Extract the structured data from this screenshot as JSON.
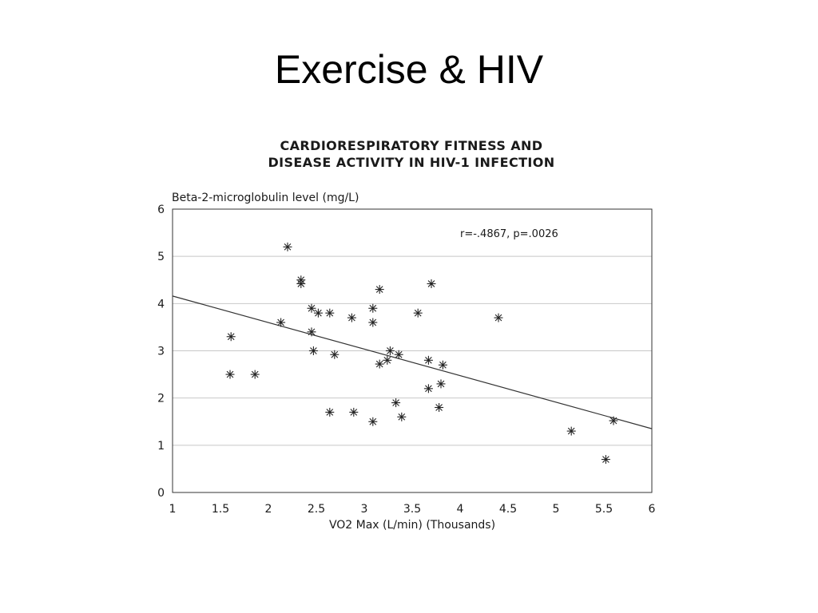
{
  "slide": {
    "title": "Exercise & HIV"
  },
  "chart_data": {
    "type": "scatter",
    "title_lines": [
      "CARDIORESPIRATORY FITNESS AND",
      "DISEASE ACTIVITY IN HIV-1 INFECTION"
    ],
    "ylabel": "Beta-2-microglobulin level (mg/L)",
    "xlabel": "VO2 Max (L/min) (Thousands)",
    "annotation": "r=-.4867, p=.0026",
    "xlim": [
      1,
      6
    ],
    "ylim": [
      0,
      6
    ],
    "x_ticks": [
      "1",
      "1.5",
      "2",
      "2.5",
      "3",
      "3.5",
      "4",
      "4.5",
      "5",
      "5.5",
      "6"
    ],
    "y_ticks": [
      "0",
      "1",
      "2",
      "3",
      "4",
      "5",
      "6"
    ],
    "grid": "horizontal",
    "marker": "asterisk",
    "points": [
      [
        1.61,
        3.3
      ],
      [
        1.6,
        2.5
      ],
      [
        1.86,
        2.5
      ],
      [
        2.13,
        3.6
      ],
      [
        2.2,
        5.2
      ],
      [
        2.34,
        4.5
      ],
      [
        2.34,
        4.42
      ],
      [
        2.45,
        3.9
      ],
      [
        2.45,
        3.4
      ],
      [
        2.47,
        3.0
      ],
      [
        2.52,
        3.8
      ],
      [
        2.64,
        3.8
      ],
      [
        2.64,
        1.7
      ],
      [
        2.69,
        2.92
      ],
      [
        2.87,
        3.7
      ],
      [
        2.89,
        1.7
      ],
      [
        3.09,
        3.9
      ],
      [
        3.09,
        3.6
      ],
      [
        3.09,
        1.5
      ],
      [
        3.16,
        4.3
      ],
      [
        3.16,
        2.72
      ],
      [
        3.24,
        2.8
      ],
      [
        3.27,
        3.0
      ],
      [
        3.33,
        1.9
      ],
      [
        3.36,
        2.92
      ],
      [
        3.39,
        1.6
      ],
      [
        3.56,
        3.8
      ],
      [
        3.67,
        2.8
      ],
      [
        3.67,
        2.2
      ],
      [
        3.7,
        4.42
      ],
      [
        3.78,
        1.8
      ],
      [
        3.8,
        2.3
      ],
      [
        3.82,
        2.7
      ],
      [
        4.4,
        3.7
      ],
      [
        5.16,
        1.3
      ],
      [
        5.52,
        0.7
      ],
      [
        5.6,
        1.52
      ]
    ],
    "trendline": {
      "x": [
        1,
        6
      ],
      "y": [
        4.16,
        1.35
      ]
    }
  }
}
